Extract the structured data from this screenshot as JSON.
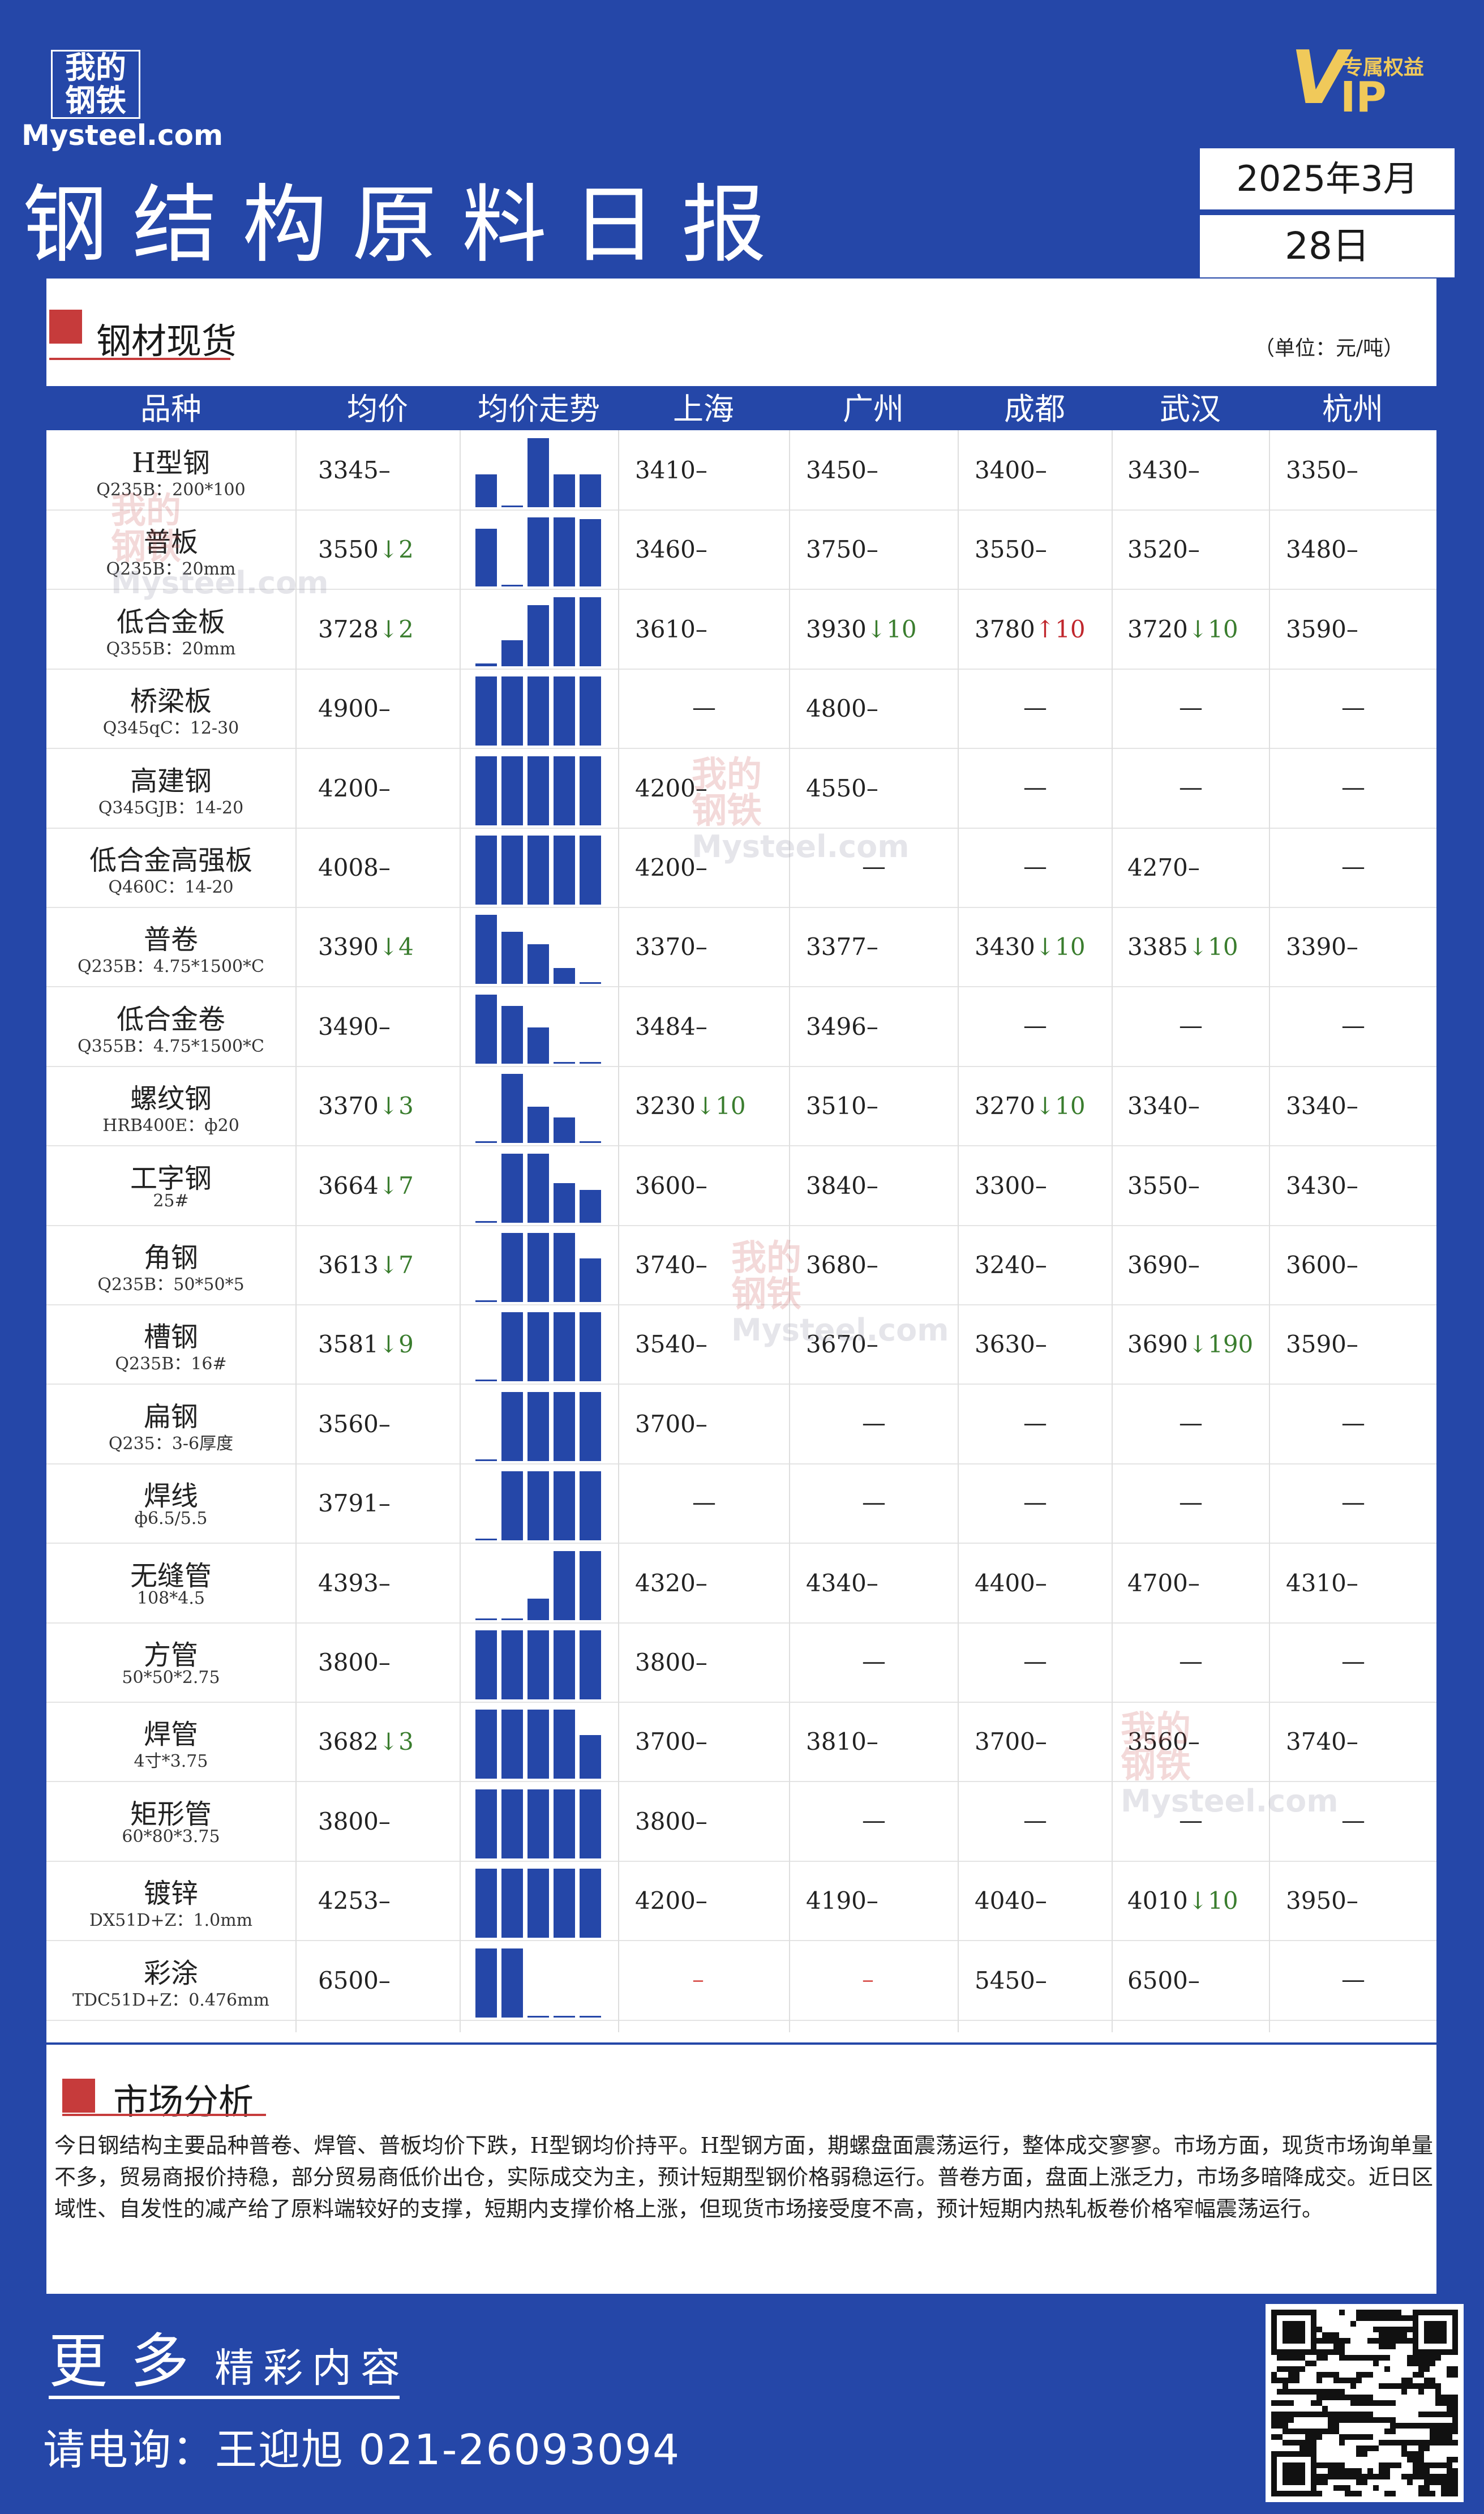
{
  "brand": {
    "logo_line1": "我的",
    "logo_line2": "钢铁",
    "logo_url": "Mysteel.com",
    "vip_letter": "V",
    "vip_rest": "IP",
    "vip_tag": "专属权益"
  },
  "header": {
    "title": "钢结构原料日报",
    "year_month": "2025年3月",
    "day": "28日"
  },
  "section1": {
    "title": "钢材现货",
    "unit": "（单位：元/吨）"
  },
  "table": {
    "columns": [
      "品种",
      "均价",
      "均价走势",
      "上海",
      "广州",
      "成都",
      "武汉",
      "杭州"
    ],
    "rows": [
      {
        "name": "H型钢",
        "spec": "Q235B：200*100",
        "avg": "3345",
        "avg_arrow": "",
        "avg_chg": "",
        "trend": [
          0.45,
          0.02,
          0.95,
          0.45,
          0.45
        ],
        "cities": [
          {
            "v": "3410",
            "a": "",
            "c": ""
          },
          {
            "v": "3450",
            "a": "",
            "c": ""
          },
          {
            "v": "3400",
            "a": "",
            "c": ""
          },
          {
            "v": "3430",
            "a": "",
            "c": ""
          },
          {
            "v": "3350",
            "a": "",
            "c": ""
          }
        ]
      },
      {
        "name": "普板",
        "spec": "Q235B：20mm",
        "avg": "3550",
        "avg_arrow": "↓",
        "avg_chg": "2",
        "trend": [
          0.8,
          0.02,
          0.95,
          0.95,
          0.93
        ],
        "cities": [
          {
            "v": "3460",
            "a": "",
            "c": ""
          },
          {
            "v": "3750",
            "a": "",
            "c": ""
          },
          {
            "v": "3550",
            "a": "",
            "c": ""
          },
          {
            "v": "3520",
            "a": "",
            "c": ""
          },
          {
            "v": "3480",
            "a": "",
            "c": ""
          }
        ]
      },
      {
        "name": "低合金板",
        "spec": "Q355B：20mm",
        "avg": "3728",
        "avg_arrow": "↓",
        "avg_chg": "2",
        "trend": [
          0.04,
          0.36,
          0.84,
          0.95,
          0.95
        ],
        "cities": [
          {
            "v": "3610",
            "a": "",
            "c": ""
          },
          {
            "v": "3930",
            "a": "↓",
            "c": "10"
          },
          {
            "v": "3780",
            "a": "↑",
            "c": "10"
          },
          {
            "v": "3720",
            "a": "↓",
            "c": "10"
          },
          {
            "v": "3590",
            "a": "",
            "c": ""
          }
        ]
      },
      {
        "name": "桥梁板",
        "spec": "Q345qC：12-30",
        "avg": "4900",
        "avg_arrow": "",
        "avg_chg": "",
        "trend": [
          0.95,
          0.95,
          0.95,
          0.95,
          0.95
        ],
        "cities": [
          {
            "v": "",
            "a": "",
            "c": ""
          },
          {
            "v": "4800",
            "a": "",
            "c": ""
          },
          {
            "v": "",
            "a": "",
            "c": ""
          },
          {
            "v": "",
            "a": "",
            "c": ""
          },
          {
            "v": "",
            "a": "",
            "c": ""
          }
        ]
      },
      {
        "name": "高建钢",
        "spec": "Q345GJB：14-20",
        "avg": "4200",
        "avg_arrow": "",
        "avg_chg": "",
        "trend": [
          0.95,
          0.95,
          0.95,
          0.95,
          0.95
        ],
        "cities": [
          {
            "v": "4200",
            "a": "",
            "c": ""
          },
          {
            "v": "4550",
            "a": "",
            "c": ""
          },
          {
            "v": "",
            "a": "",
            "c": ""
          },
          {
            "v": "",
            "a": "",
            "c": ""
          },
          {
            "v": "",
            "a": "",
            "c": ""
          }
        ]
      },
      {
        "name": "低合金高强板",
        "spec": "Q460C：14-20",
        "avg": "4008",
        "avg_arrow": "",
        "avg_chg": "",
        "trend": [
          0.95,
          0.95,
          0.95,
          0.95,
          0.95
        ],
        "cities": [
          {
            "v": "4200",
            "a": "",
            "c": ""
          },
          {
            "v": "",
            "a": "",
            "c": ""
          },
          {
            "v": "",
            "a": "",
            "c": ""
          },
          {
            "v": "4270",
            "a": "",
            "c": ""
          },
          {
            "v": "",
            "a": "",
            "c": ""
          }
        ]
      },
      {
        "name": "普卷",
        "spec": "Q235B：4.75*1500*C",
        "avg": "3390",
        "avg_arrow": "↓",
        "avg_chg": "4",
        "trend": [
          0.95,
          0.72,
          0.55,
          0.22,
          0.02
        ],
        "cities": [
          {
            "v": "3370",
            "a": "",
            "c": ""
          },
          {
            "v": "3377",
            "a": "",
            "c": ""
          },
          {
            "v": "3430",
            "a": "↓",
            "c": "10"
          },
          {
            "v": "3385",
            "a": "↓",
            "c": "10"
          },
          {
            "v": "3390",
            "a": "",
            "c": ""
          }
        ]
      },
      {
        "name": "低合金卷",
        "spec": "Q355B：4.75*1500*C",
        "avg": "3490",
        "avg_arrow": "",
        "avg_chg": "",
        "trend": [
          0.95,
          0.8,
          0.5,
          0.02,
          0.02
        ],
        "cities": [
          {
            "v": "3484",
            "a": "",
            "c": ""
          },
          {
            "v": "3496",
            "a": "",
            "c": ""
          },
          {
            "v": "",
            "a": "",
            "c": ""
          },
          {
            "v": "",
            "a": "",
            "c": ""
          },
          {
            "v": "",
            "a": "",
            "c": ""
          }
        ]
      },
      {
        "name": "螺纹钢",
        "spec": "HRB400E：ф20",
        "avg": "3370",
        "avg_arrow": "↓",
        "avg_chg": "3",
        "trend": [
          0.02,
          0.95,
          0.5,
          0.35,
          0.02
        ],
        "cities": [
          {
            "v": "3230",
            "a": "↓",
            "c": "10"
          },
          {
            "v": "3510",
            "a": "",
            "c": ""
          },
          {
            "v": "3270",
            "a": "↓",
            "c": "10"
          },
          {
            "v": "3340",
            "a": "",
            "c": ""
          },
          {
            "v": "3340",
            "a": "",
            "c": ""
          }
        ]
      },
      {
        "name": "工字钢",
        "spec": "25#",
        "avg": "3664",
        "avg_arrow": "↓",
        "avg_chg": "7",
        "trend": [
          0.02,
          0.95,
          0.95,
          0.55,
          0.45
        ],
        "cities": [
          {
            "v": "3600",
            "a": "",
            "c": ""
          },
          {
            "v": "3840",
            "a": "",
            "c": ""
          },
          {
            "v": "3300",
            "a": "",
            "c": ""
          },
          {
            "v": "3550",
            "a": "",
            "c": ""
          },
          {
            "v": "3430",
            "a": "",
            "c": ""
          }
        ]
      },
      {
        "name": "角钢",
        "spec": "Q235B：50*50*5",
        "avg": "3613",
        "avg_arrow": "↓",
        "avg_chg": "7",
        "trend": [
          0.02,
          0.95,
          0.95,
          0.95,
          0.6
        ],
        "cities": [
          {
            "v": "3740",
            "a": "",
            "c": ""
          },
          {
            "v": "3680",
            "a": "",
            "c": ""
          },
          {
            "v": "3240",
            "a": "",
            "c": ""
          },
          {
            "v": "3690",
            "a": "",
            "c": ""
          },
          {
            "v": "3600",
            "a": "",
            "c": ""
          }
        ]
      },
      {
        "name": "槽钢",
        "spec": "Q235B：16#",
        "avg": "3581",
        "avg_arrow": "↓",
        "avg_chg": "9",
        "trend": [
          0.02,
          0.95,
          0.95,
          0.95,
          0.95
        ],
        "cities": [
          {
            "v": "3540",
            "a": "",
            "c": ""
          },
          {
            "v": "3670",
            "a": "",
            "c": ""
          },
          {
            "v": "3630",
            "a": "",
            "c": ""
          },
          {
            "v": "3690",
            "a": "↓",
            "c": "190"
          },
          {
            "v": "3590",
            "a": "",
            "c": ""
          }
        ]
      },
      {
        "name": "扁钢",
        "spec": "Q235：3-6厚度",
        "avg": "3560",
        "avg_arrow": "",
        "avg_chg": "",
        "trend": [
          0.02,
          0.95,
          0.95,
          0.95,
          0.95
        ],
        "cities": [
          {
            "v": "3700",
            "a": "",
            "c": ""
          },
          {
            "v": "",
            "a": "",
            "c": ""
          },
          {
            "v": "",
            "a": "",
            "c": ""
          },
          {
            "v": "",
            "a": "",
            "c": ""
          },
          {
            "v": "",
            "a": "",
            "c": ""
          }
        ]
      },
      {
        "name": "焊线",
        "spec": "ф6.5/5.5",
        "avg": "3791",
        "avg_arrow": "",
        "avg_chg": "",
        "trend": [
          0.02,
          0.95,
          0.95,
          0.95,
          0.95
        ],
        "cities": [
          {
            "v": "",
            "a": "",
            "c": ""
          },
          {
            "v": "",
            "a": "",
            "c": ""
          },
          {
            "v": "",
            "a": "",
            "c": ""
          },
          {
            "v": "",
            "a": "",
            "c": ""
          },
          {
            "v": "",
            "a": "",
            "c": ""
          }
        ]
      },
      {
        "name": "无缝管",
        "spec": "108*4.5",
        "avg": "4393",
        "avg_arrow": "",
        "avg_chg": "",
        "trend": [
          0.02,
          0.02,
          0.3,
          0.95,
          0.95
        ],
        "cities": [
          {
            "v": "4320",
            "a": "",
            "c": ""
          },
          {
            "v": "4340",
            "a": "",
            "c": ""
          },
          {
            "v": "4400",
            "a": "",
            "c": ""
          },
          {
            "v": "4700",
            "a": "",
            "c": ""
          },
          {
            "v": "4310",
            "a": "",
            "c": ""
          }
        ]
      },
      {
        "name": "方管",
        "spec": "50*50*2.75",
        "avg": "3800",
        "avg_arrow": "",
        "avg_chg": "",
        "trend": [
          0.95,
          0.95,
          0.95,
          0.95,
          0.95
        ],
        "cities": [
          {
            "v": "3800",
            "a": "",
            "c": ""
          },
          {
            "v": "",
            "a": "",
            "c": ""
          },
          {
            "v": "",
            "a": "",
            "c": ""
          },
          {
            "v": "",
            "a": "",
            "c": ""
          },
          {
            "v": "",
            "a": "",
            "c": ""
          }
        ]
      },
      {
        "name": "焊管",
        "spec": "4寸*3.75",
        "avg": "3682",
        "avg_arrow": "↓",
        "avg_chg": "3",
        "trend": [
          0.95,
          0.95,
          0.95,
          0.95,
          0.6
        ],
        "cities": [
          {
            "v": "3700",
            "a": "",
            "c": ""
          },
          {
            "v": "3810",
            "a": "",
            "c": ""
          },
          {
            "v": "3700",
            "a": "",
            "c": ""
          },
          {
            "v": "3560",
            "a": "",
            "c": ""
          },
          {
            "v": "3740",
            "a": "",
            "c": ""
          }
        ]
      },
      {
        "name": "矩形管",
        "spec": "60*80*3.75",
        "avg": "3800",
        "avg_arrow": "",
        "avg_chg": "",
        "trend": [
          0.95,
          0.95,
          0.95,
          0.95,
          0.95
        ],
        "cities": [
          {
            "v": "3800",
            "a": "",
            "c": ""
          },
          {
            "v": "",
            "a": "",
            "c": ""
          },
          {
            "v": "",
            "a": "",
            "c": ""
          },
          {
            "v": "",
            "a": "",
            "c": ""
          },
          {
            "v": "",
            "a": "",
            "c": ""
          }
        ]
      },
      {
        "name": "镀锌",
        "spec": "DX51D+Z：1.0mm",
        "avg": "4253",
        "avg_arrow": "",
        "avg_chg": "",
        "trend": [
          0.95,
          0.95,
          0.95,
          0.95,
          0.95
        ],
        "cities": [
          {
            "v": "4200",
            "a": "",
            "c": ""
          },
          {
            "v": "4190",
            "a": "",
            "c": ""
          },
          {
            "v": "4040",
            "a": "",
            "c": ""
          },
          {
            "v": "4010",
            "a": "↓",
            "c": "10"
          },
          {
            "v": "3950",
            "a": "",
            "c": ""
          }
        ]
      },
      {
        "name": "彩涂",
        "spec": "TDC51D+Z：0.476mm",
        "avg": "6500",
        "avg_arrow": "",
        "avg_chg": "",
        "trend": [
          0.95,
          0.95,
          0.02,
          0.02,
          0.02
        ],
        "cities": [
          {
            "v": "",
            "a": "",
            "c": "red"
          },
          {
            "v": "",
            "a": "",
            "c": "red"
          },
          {
            "v": "5450",
            "a": "",
            "c": ""
          },
          {
            "v": "6500",
            "a": "",
            "c": ""
          },
          {
            "v": "",
            "a": "",
            "c": ""
          }
        ]
      }
    ]
  },
  "section2": {
    "title": "市场分析",
    "text": "今日钢结构主要品种普卷、焊管、普板均价下跌，H型钢均价持平。H型钢方面，期螺盘面震荡运行，整体成交寥寥。市场方面，现货市场询单量不多，贸易商报价持稳，部分贸易商低价出仓，实际成交为主，预计短期型钢价格弱稳运行。普卷方面，盘面上涨乏力，市场多暗降成交。近日区域性、自发性的减产给了原料端较好的支撑，短期内支撑价格上涨，但现货市场接受度不高，预计短期内热轧板卷价格窄幅震荡运行。"
  },
  "footer": {
    "more_big": "更多",
    "more_small": "精彩内容",
    "phone": "请电询：王迎旭  021-26093094"
  },
  "colors": {
    "brand_blue": "#2547a8",
    "accent_red": "#c63b3b",
    "down_green": "#3a7d2e",
    "up_red": "#c0272d",
    "vip_gold": "#f0c95a"
  },
  "icons": {
    "qr": "qr-code-icon"
  }
}
